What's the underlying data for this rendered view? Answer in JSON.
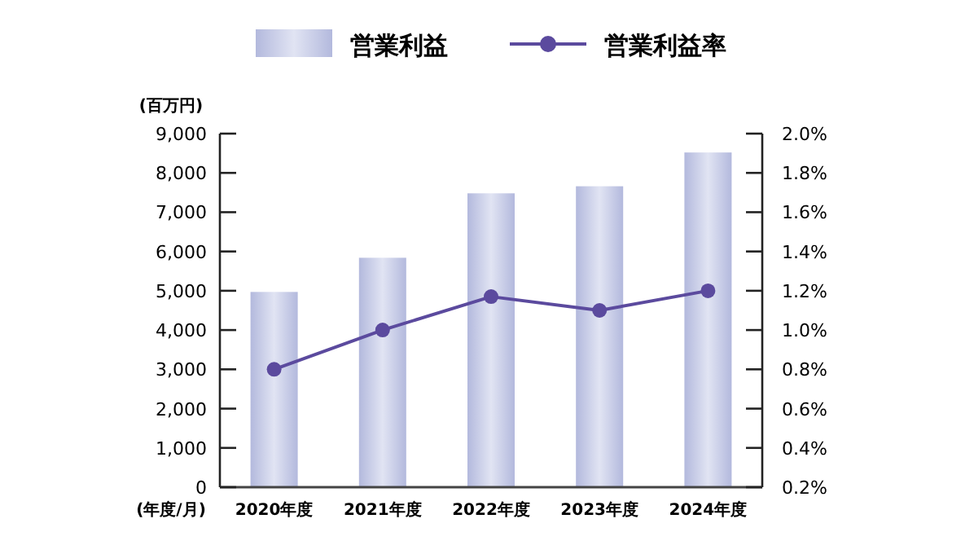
{
  "chart_data": {
    "type": "bar",
    "ylabel": "(百万円)",
    "xlabel": "(年度/月)",
    "categories": [
      "2020年度",
      "2021年度",
      "2022年度",
      "2023年度",
      "2024年度"
    ],
    "series": [
      {
        "name": "営業利益",
        "color": "#b3b9dd",
        "values": [
          4970,
          5840,
          7480,
          7660,
          8520
        ]
      },
      {
        "name": "営業利益率",
        "type": "line",
        "axis": "y2",
        "color": "#5b4a9e",
        "marker": "circle",
        "values": [
          0.8,
          1.0,
          1.17,
          1.1,
          1.2
        ]
      }
    ],
    "ylim": [
      0,
      9000
    ],
    "yticks": [
      {
        "value": 0,
        "label": "0"
      },
      {
        "value": 1000,
        "label": "1,000"
      },
      {
        "value": 2000,
        "label": "2,000"
      },
      {
        "value": 3000,
        "label": "3,000"
      },
      {
        "value": 4000,
        "label": "4,000"
      },
      {
        "value": 5000,
        "label": "5,000"
      },
      {
        "value": 6000,
        "label": "6,000"
      },
      {
        "value": 7000,
        "label": "7,000"
      },
      {
        "value": 8000,
        "label": "8,000"
      },
      {
        "value": 9000,
        "label": "9,000"
      }
    ],
    "y2lim": [
      0.2,
      2.0
    ],
    "y2ticks": [
      {
        "value": 0.2,
        "label": "0.2%"
      },
      {
        "value": 0.4,
        "label": "0.4%"
      },
      {
        "value": 0.6,
        "label": "0.6%"
      },
      {
        "value": 0.8,
        "label": "0.8%"
      },
      {
        "value": 1.0,
        "label": "1.0%"
      },
      {
        "value": 1.2,
        "label": "1.2%"
      },
      {
        "value": 1.4,
        "label": "1.4%"
      },
      {
        "value": 1.6,
        "label": "1.6%"
      },
      {
        "value": 1.8,
        "label": "1.8%"
      },
      {
        "value": 2.0,
        "label": "2.0%"
      }
    ],
    "legend": "top",
    "grid": false
  }
}
